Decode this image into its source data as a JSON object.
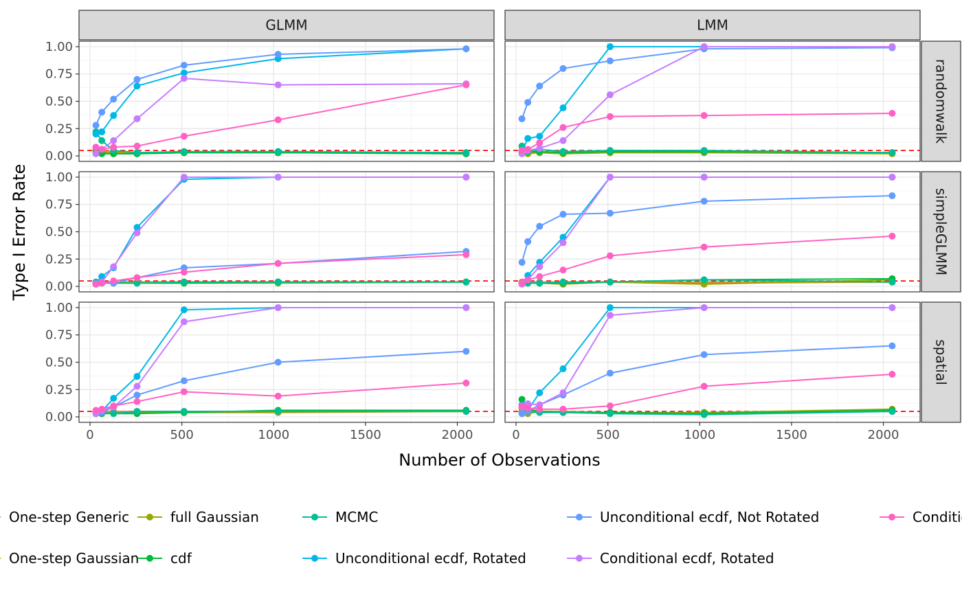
{
  "chart_data": {
    "type": "line",
    "facet_cols": [
      "GLMM",
      "LMM"
    ],
    "facet_rows": [
      "randomwalk",
      "simpleGLMM",
      "spatial"
    ],
    "xlabel": "Number of Observations",
    "ylabel": "Type I Error Rate",
    "x": [
      32,
      64,
      128,
      256,
      512,
      1024,
      2048
    ],
    "xlim": [
      -60,
      2200
    ],
    "ylim": [
      -0.05,
      1.05
    ],
    "xticks": [
      0,
      500,
      1000,
      1500,
      2000
    ],
    "xtick_labels": [
      "0",
      "500",
      "1000",
      "1500",
      "2000"
    ],
    "yticks": [
      0,
      0.25,
      0.5,
      0.75,
      1
    ],
    "ytick_labels": [
      "0.00",
      "0.25",
      "0.50",
      "0.75",
      "1.00"
    ],
    "reference_line": {
      "y": 0.05,
      "color": "#ff0000",
      "style": "dashed"
    },
    "grid": true,
    "legend_position": "bottom",
    "series": [
      {
        "name": "One-step Generic",
        "color": "#F8766D"
      },
      {
        "name": "One-step Gaussian",
        "color": "#C49A00"
      },
      {
        "name": "full Gaussian",
        "color": "#99A800"
      },
      {
        "name": "cdf",
        "color": "#00BA38"
      },
      {
        "name": "MCMC",
        "color": "#00BF96"
      },
      {
        "name": "Unconditional ecdf, Rotated",
        "color": "#00B8E7"
      },
      {
        "name": "Unconditional ecdf, Not Rotated",
        "color": "#619CFF"
      },
      {
        "name": "Conditional ecdf, Rotated",
        "color": "#C77CFF"
      },
      {
        "name": "Conditional ecdf, Not Rotated",
        "color": "#FF61C3"
      }
    ],
    "panels": [
      {
        "col": 0,
        "row": 0,
        "values": [
          [
            0.06,
            0.05,
            0.04,
            0.03,
            0.03,
            0.03,
            0.03
          ],
          [
            0.05,
            0.04,
            0.03,
            0.03,
            0.03,
            0.03,
            0.03
          ],
          [
            0.04,
            0.03,
            0.02,
            0.02,
            0.03,
            0.03,
            0.02
          ],
          [
            0.03,
            0.02,
            0.02,
            0.02,
            0.03,
            0.03,
            0.02
          ],
          [
            0.22,
            0.14,
            0.05,
            0.03,
            0.04,
            0.04,
            0.03
          ],
          [
            0.2,
            0.22,
            0.37,
            0.64,
            0.76,
            0.89,
            0.98
          ],
          [
            0.28,
            0.4,
            0.52,
            0.7,
            0.83,
            0.93,
            0.98
          ],
          [
            0.02,
            0.06,
            0.14,
            0.34,
            0.71,
            0.65,
            0.66
          ],
          [
            0.08,
            0.06,
            0.08,
            0.09,
            0.18,
            0.33,
            0.65
          ]
        ]
      },
      {
        "col": 1,
        "row": 0,
        "values": [
          [
            0.04,
            0.04,
            0.04,
            0.03,
            0.03,
            0.03,
            0.03
          ],
          [
            0.03,
            0.03,
            0.03,
            0.02,
            0.03,
            0.03,
            0.03
          ],
          [
            0.03,
            0.02,
            0.03,
            0.02,
            0.03,
            0.03,
            0.02
          ],
          [
            0.04,
            0.04,
            0.04,
            0.03,
            0.04,
            0.04,
            0.03
          ],
          [
            0.09,
            0.04,
            0.06,
            0.04,
            0.05,
            0.05,
            0.03
          ],
          [
            0.04,
            0.16,
            0.18,
            0.44,
            1.0,
            1.0,
            1.0
          ],
          [
            0.34,
            0.49,
            0.64,
            0.8,
            0.87,
            0.98,
            0.99
          ],
          [
            0.02,
            0.05,
            0.07,
            0.14,
            0.56,
            1.0,
            1.0
          ],
          [
            0.05,
            0.06,
            0.12,
            0.26,
            0.36,
            0.37,
            0.39
          ]
        ]
      },
      {
        "col": 0,
        "row": 1,
        "values": [
          [
            0.03,
            0.04,
            0.04,
            0.04,
            0.04,
            0.04,
            0.04
          ],
          [
            0.03,
            0.03,
            0.04,
            0.04,
            0.04,
            0.04,
            0.04
          ],
          [
            0.03,
            0.03,
            0.03,
            0.03,
            0.03,
            0.03,
            0.04
          ],
          [
            0.03,
            0.03,
            0.03,
            0.03,
            0.03,
            0.04,
            0.04
          ],
          [
            0.04,
            0.03,
            0.03,
            0.03,
            0.04,
            0.04,
            0.04
          ],
          [
            0.03,
            0.09,
            0.17,
            0.54,
            0.98,
            1.0,
            1.0
          ],
          [
            0.03,
            0.04,
            0.03,
            0.08,
            0.17,
            0.21,
            0.32
          ],
          [
            0.02,
            0.04,
            0.18,
            0.49,
            1.0,
            1.0,
            1.0
          ],
          [
            0.02,
            0.03,
            0.05,
            0.08,
            0.13,
            0.21,
            0.29
          ]
        ]
      },
      {
        "col": 1,
        "row": 1,
        "values": [
          [
            0.04,
            0.04,
            0.04,
            0.04,
            0.04,
            0.04,
            0.04
          ],
          [
            0.03,
            0.03,
            0.03,
            0.03,
            0.04,
            0.03,
            0.04
          ],
          [
            0.03,
            0.03,
            0.03,
            0.02,
            0.04,
            0.02,
            0.06
          ],
          [
            0.03,
            0.03,
            0.03,
            0.03,
            0.04,
            0.06,
            0.07
          ],
          [
            0.03,
            0.03,
            0.03,
            0.04,
            0.04,
            0.06,
            0.04
          ],
          [
            0.03,
            0.1,
            0.22,
            0.45,
            1.0,
            1.0,
            1.0
          ],
          [
            0.22,
            0.41,
            0.55,
            0.66,
            0.67,
            0.78,
            0.83
          ],
          [
            0.02,
            0.06,
            0.18,
            0.4,
            1.0,
            1.0,
            1.0
          ],
          [
            0.03,
            0.06,
            0.09,
            0.15,
            0.28,
            0.36,
            0.46
          ]
        ]
      },
      {
        "col": 0,
        "row": 2,
        "values": [
          [
            0.05,
            0.05,
            0.05,
            0.05,
            0.05,
            0.05,
            0.05
          ],
          [
            0.04,
            0.04,
            0.04,
            0.04,
            0.04,
            0.04,
            0.05
          ],
          [
            0.03,
            0.03,
            0.04,
            0.04,
            0.04,
            0.05,
            0.05
          ],
          [
            0.03,
            0.03,
            0.03,
            0.03,
            0.04,
            0.06,
            0.06
          ],
          [
            0.03,
            0.04,
            0.03,
            0.05,
            0.05,
            0.05,
            0.05
          ],
          [
            0.03,
            0.05,
            0.17,
            0.37,
            0.98,
            1.0,
            1.0
          ],
          [
            0.03,
            0.04,
            0.09,
            0.2,
            0.33,
            0.5,
            0.6
          ],
          [
            0.03,
            0.06,
            0.09,
            0.28,
            0.87,
            1.0,
            1.0
          ],
          [
            0.06,
            0.07,
            0.1,
            0.14,
            0.23,
            0.19,
            0.31
          ]
        ]
      },
      {
        "col": 1,
        "row": 2,
        "values": [
          [
            0.05,
            0.05,
            0.05,
            0.05,
            0.04,
            0.04,
            0.05
          ],
          [
            0.04,
            0.04,
            0.05,
            0.05,
            0.04,
            0.04,
            0.06
          ],
          [
            0.08,
            0.03,
            0.05,
            0.05,
            0.03,
            0.04,
            0.07
          ],
          [
            0.16,
            0.07,
            0.05,
            0.04,
            0.04,
            0.03,
            0.06
          ],
          [
            0.03,
            0.05,
            0.04,
            0.04,
            0.03,
            0.02,
            0.05
          ],
          [
            0.11,
            0.06,
            0.22,
            0.44,
            1.0,
            1.0,
            1.0
          ],
          [
            0.03,
            0.05,
            0.11,
            0.2,
            0.4,
            0.57,
            0.65
          ],
          [
            0.09,
            0.12,
            0.11,
            0.22,
            0.93,
            1.0,
            1.0
          ],
          [
            0.1,
            0.08,
            0.07,
            0.07,
            0.1,
            0.28,
            0.39
          ]
        ]
      }
    ]
  }
}
